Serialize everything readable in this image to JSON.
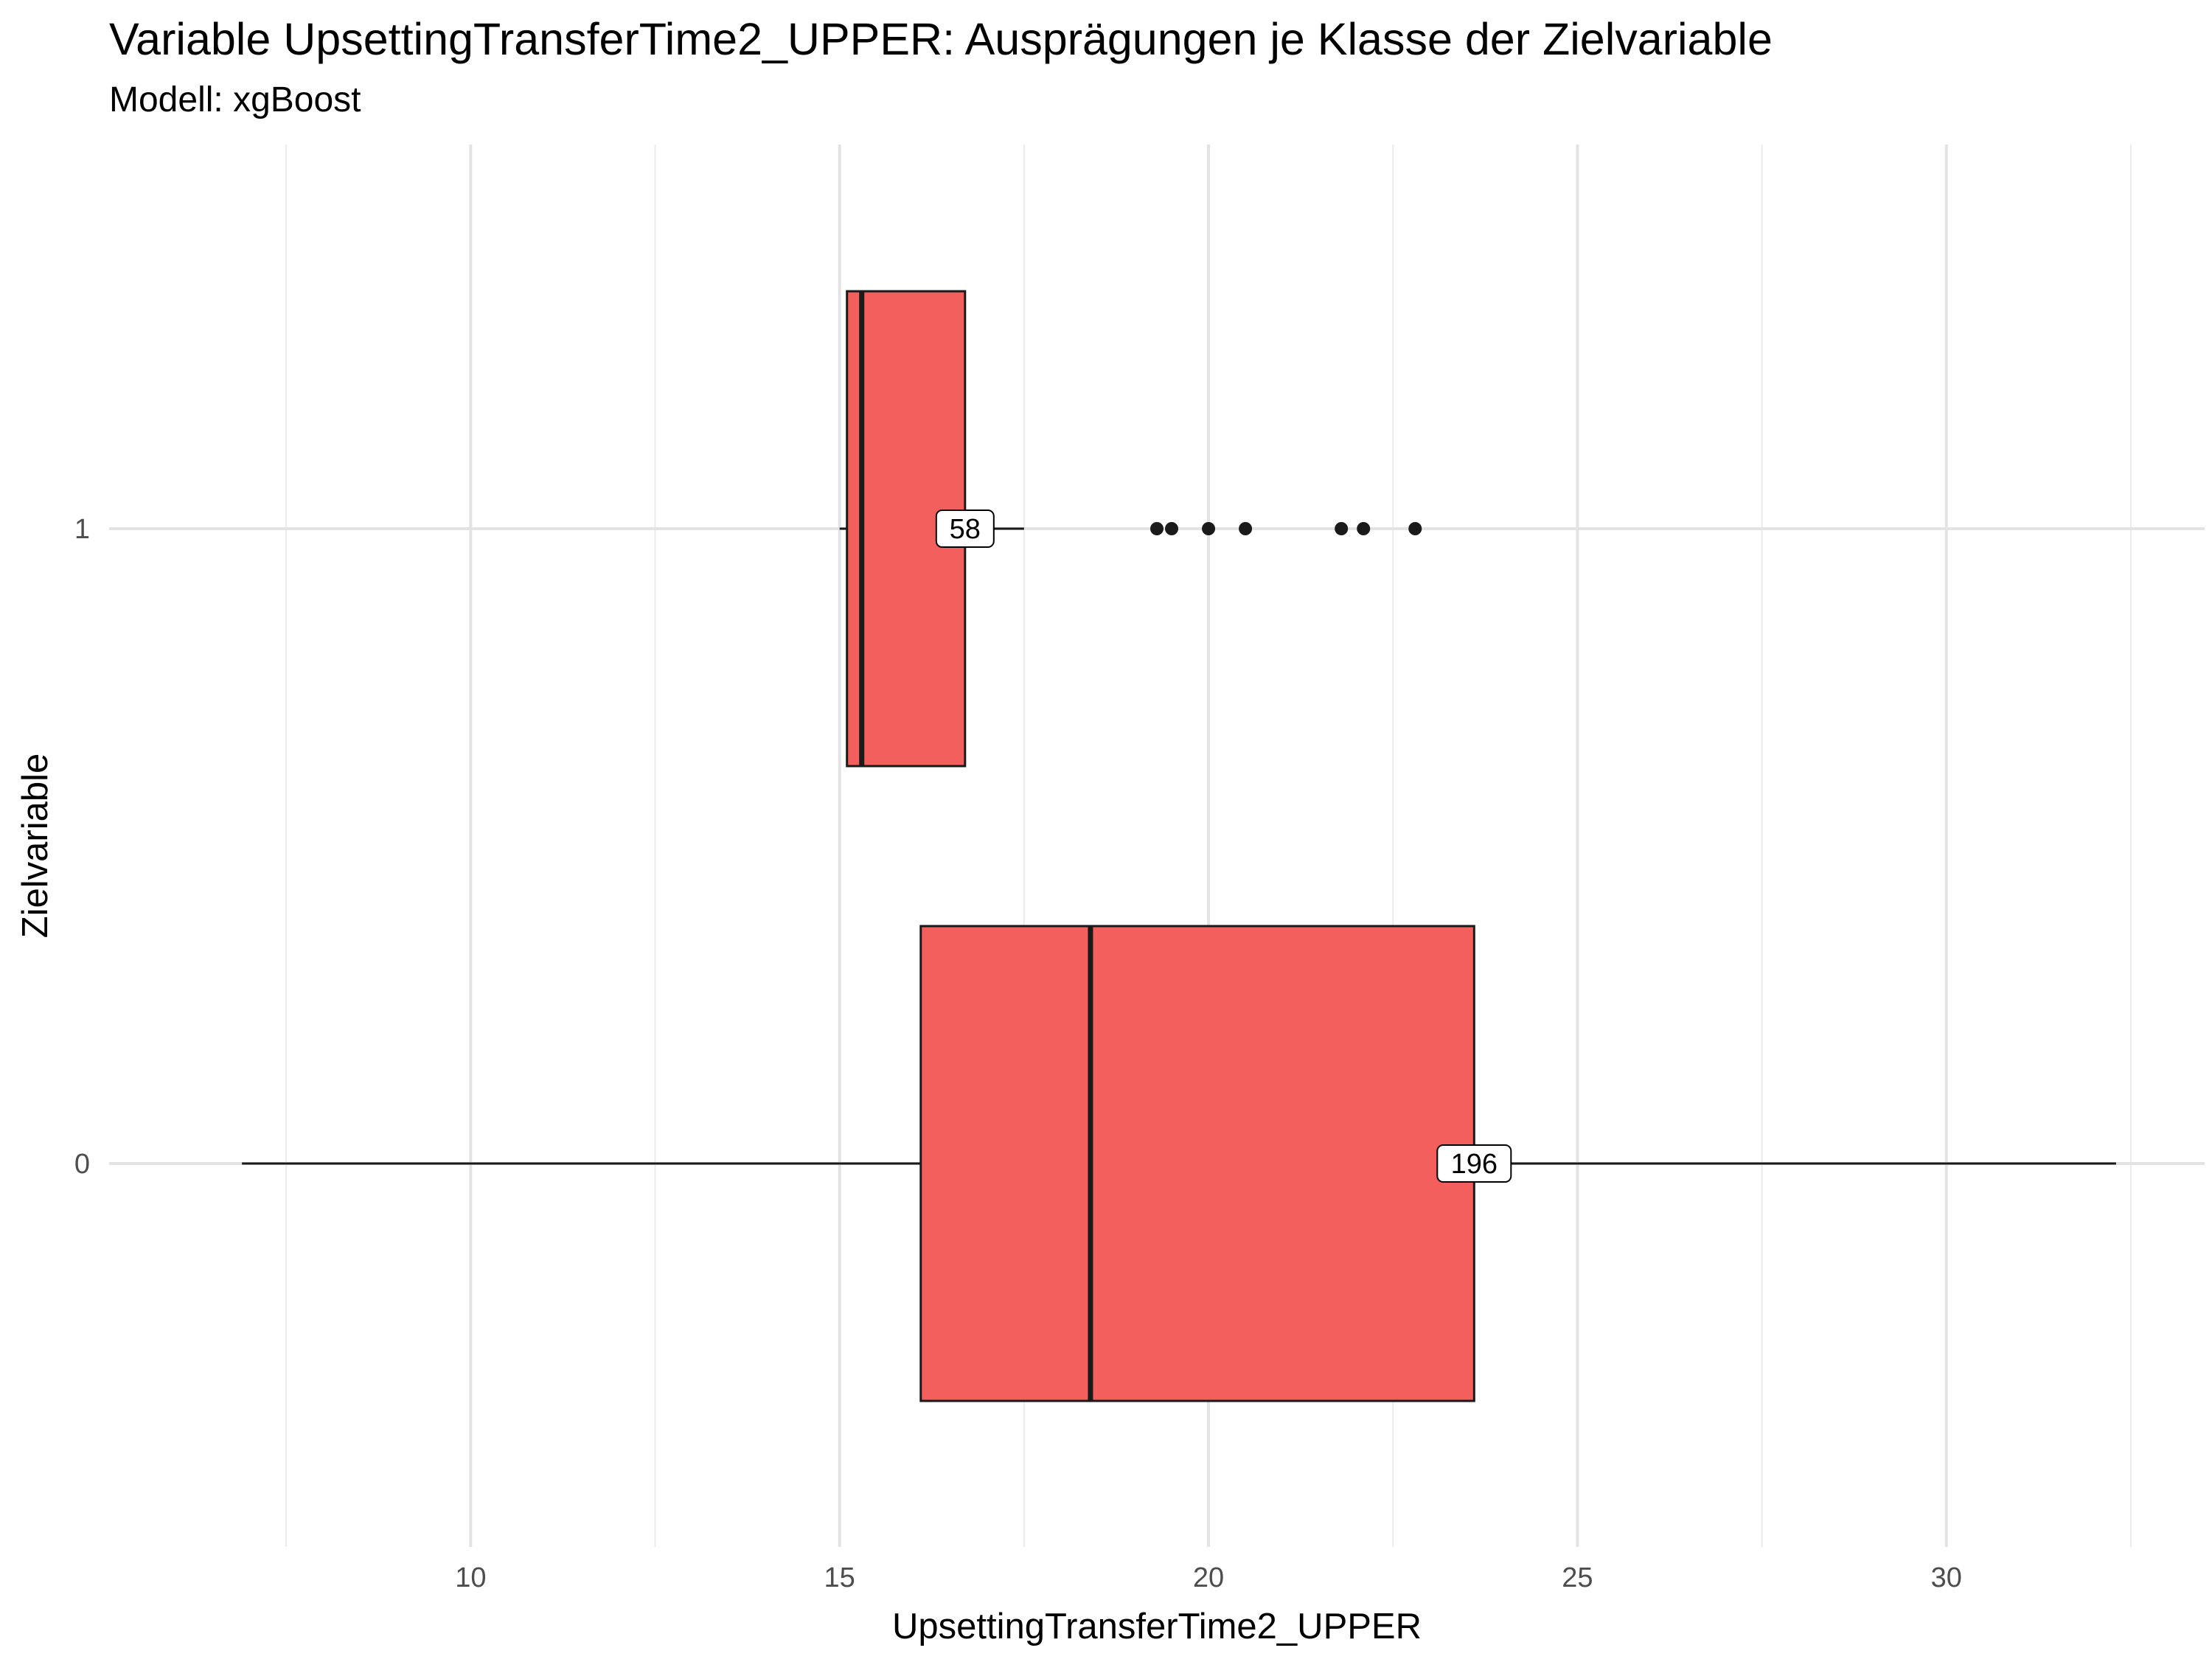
{
  "chart_data": {
    "type": "boxplot",
    "orientation": "horizontal",
    "title": "Variable UpsettingTransferTime2_UPPER: Ausprägungen je Klasse der Zielvariable",
    "subtitle": "Modell: xgBoost",
    "xlabel": "UpsettingTransferTime2_UPPER",
    "ylabel": "Zielvariable",
    "xlim": [
      5.1,
      33.5
    ],
    "x_ticks": [
      10,
      15,
      20,
      25,
      30
    ],
    "x_minor_ticks": [
      7.5,
      12.5,
      17.5,
      22.5,
      27.5,
      32.5
    ],
    "categories": [
      "0",
      "1"
    ],
    "fill_color": "#F25F5C",
    "grid": true,
    "series": [
      {
        "category": "0",
        "whisker_low": 6.9,
        "q1": 16.1,
        "median": 18.4,
        "q3": 23.6,
        "whisker_high": 32.3,
        "outliers": [],
        "count_label": "196",
        "count_label_x": 23.6
      },
      {
        "category": "1",
        "whisker_low": 15.0,
        "q1": 15.1,
        "median": 15.3,
        "q3": 16.7,
        "whisker_high": 17.5,
        "outliers": [
          19.3,
          19.5,
          20.0,
          20.5,
          21.8,
          22.1,
          22.8
        ],
        "count_label": "58",
        "count_label_x": 16.7
      }
    ]
  }
}
